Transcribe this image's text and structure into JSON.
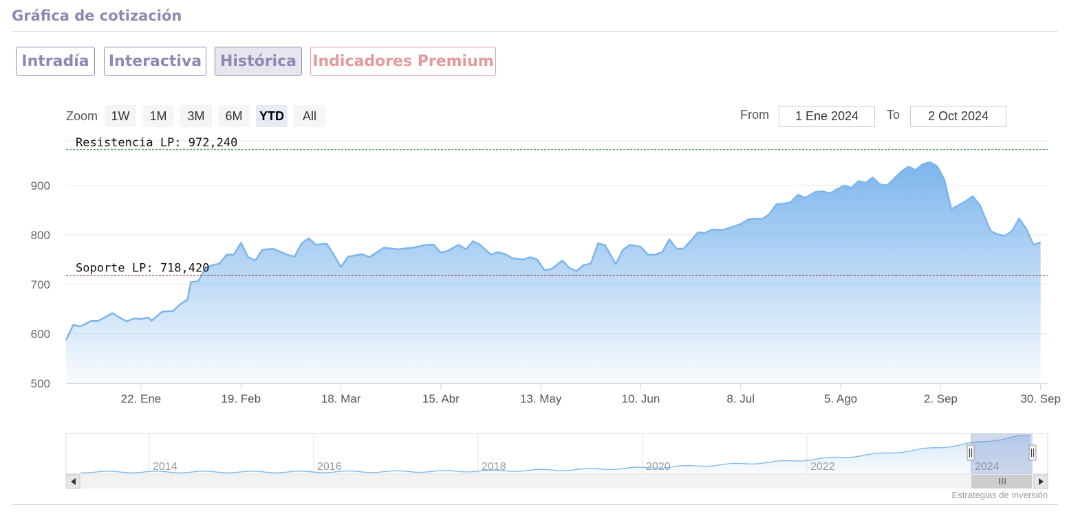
{
  "header": {
    "title": "Gráfica de cotización"
  },
  "tabs": [
    {
      "label": "Intradía"
    },
    {
      "label": "Interactiva"
    },
    {
      "label": "Histórica",
      "active": true
    },
    {
      "label": "Indicadores Premium"
    }
  ],
  "toolbar": {
    "zoom_label": "Zoom",
    "zoom_buttons": [
      "1W",
      "1M",
      "3M",
      "6M",
      "YTD",
      "All"
    ],
    "zoom_selected": "YTD",
    "from_label": "From",
    "from_value": "1 Ene 2024",
    "to_label": "To",
    "to_value": "2 Oct 2024"
  },
  "colors": {
    "accent": "#8d88b7",
    "premium": "#e49a9c",
    "series": "#7cb5ec",
    "resistance": "#1a7f2b",
    "support": "#8b1a2b"
  },
  "chart_data": {
    "type": "area",
    "x_start": "2024-01-01",
    "x_end": "2024-10-02",
    "ylim": [
      500,
      990
    ],
    "yticks": [
      "500",
      "600",
      "700",
      "800",
      "900"
    ],
    "xticks": [
      {
        "date": "2024-01-22",
        "label": "22. Ene"
      },
      {
        "date": "2024-02-19",
        "label": "19. Feb"
      },
      {
        "date": "2024-03-18",
        "label": "18. Mar"
      },
      {
        "date": "2024-04-15",
        "label": "15. Abr"
      },
      {
        "date": "2024-05-13",
        "label": "13. May"
      },
      {
        "date": "2024-06-10",
        "label": "10. Jun"
      },
      {
        "date": "2024-07-08",
        "label": "8. Jul"
      },
      {
        "date": "2024-08-05",
        "label": "5. Ago"
      },
      {
        "date": "2024-09-02",
        "label": "2. Sep"
      },
      {
        "date": "2024-09-30",
        "label": "30. Sep"
      }
    ],
    "plot_lines": [
      {
        "label": "Resistencia LP: 972,240",
        "value": 972.24,
        "color": "#1a7f2b"
      },
      {
        "label": "Soporte LP: 718,420",
        "value": 718.42,
        "color": "#8b1a2b"
      }
    ],
    "series": [
      {
        "points": [
          [
            "2024-01-01",
            587
          ],
          [
            "2024-01-03",
            618
          ],
          [
            "2024-01-05",
            615
          ],
          [
            "2024-01-08",
            626
          ],
          [
            "2024-01-10",
            626
          ],
          [
            "2024-01-12",
            634
          ],
          [
            "2024-01-14",
            642
          ],
          [
            "2024-01-16",
            633
          ],
          [
            "2024-01-18",
            625
          ],
          [
            "2024-01-20",
            631
          ],
          [
            "2024-01-22",
            630
          ],
          [
            "2024-01-24",
            633
          ],
          [
            "2024-01-25",
            627
          ],
          [
            "2024-01-27",
            639
          ],
          [
            "2024-01-28",
            645
          ],
          [
            "2024-01-31",
            646
          ],
          [
            "2024-02-02",
            660
          ],
          [
            "2024-02-04",
            669
          ],
          [
            "2024-02-05",
            705
          ],
          [
            "2024-02-07",
            706
          ],
          [
            "2024-02-09",
            732
          ],
          [
            "2024-02-11",
            739
          ],
          [
            "2024-02-13",
            742
          ],
          [
            "2024-02-15",
            760
          ],
          [
            "2024-02-17",
            760
          ],
          [
            "2024-02-19",
            784
          ],
          [
            "2024-02-21",
            755
          ],
          [
            "2024-02-23",
            748
          ],
          [
            "2024-02-25",
            770
          ],
          [
            "2024-02-28",
            772
          ],
          [
            "2024-03-03",
            760
          ],
          [
            "2024-03-05",
            756
          ],
          [
            "2024-03-07",
            783
          ],
          [
            "2024-03-09",
            793
          ],
          [
            "2024-03-11",
            780
          ],
          [
            "2024-03-14",
            782
          ],
          [
            "2024-03-16",
            760
          ],
          [
            "2024-03-18",
            735
          ],
          [
            "2024-03-20",
            756
          ],
          [
            "2024-03-24",
            761
          ],
          [
            "2024-03-26",
            755
          ],
          [
            "2024-03-30",
            774
          ],
          [
            "2024-04-03",
            771
          ],
          [
            "2024-04-07",
            774
          ],
          [
            "2024-04-11",
            780
          ],
          [
            "2024-04-13",
            780
          ],
          [
            "2024-04-15",
            764
          ],
          [
            "2024-04-17",
            768
          ],
          [
            "2024-04-20",
            780
          ],
          [
            "2024-04-22",
            771
          ],
          [
            "2024-04-24",
            787
          ],
          [
            "2024-04-26",
            780
          ],
          [
            "2024-04-29",
            760
          ],
          [
            "2024-05-01",
            765
          ],
          [
            "2024-05-03",
            761
          ],
          [
            "2024-05-05",
            753
          ],
          [
            "2024-05-08",
            750
          ],
          [
            "2024-05-10",
            755
          ],
          [
            "2024-05-12",
            750
          ],
          [
            "2024-05-14",
            729
          ],
          [
            "2024-05-16",
            731
          ],
          [
            "2024-05-19",
            748
          ],
          [
            "2024-05-21",
            733
          ],
          [
            "2024-05-23",
            727
          ],
          [
            "2024-05-25",
            739
          ],
          [
            "2024-05-27",
            742
          ],
          [
            "2024-05-29",
            783
          ],
          [
            "2024-05-31",
            779
          ],
          [
            "2024-06-03",
            741
          ],
          [
            "2024-06-05",
            770
          ],
          [
            "2024-06-07",
            780
          ],
          [
            "2024-06-10",
            776
          ],
          [
            "2024-06-12",
            760
          ],
          [
            "2024-06-14",
            760
          ],
          [
            "2024-06-16",
            765
          ],
          [
            "2024-06-18",
            791
          ],
          [
            "2024-06-20",
            772
          ],
          [
            "2024-06-22",
            772
          ],
          [
            "2024-06-24",
            788
          ],
          [
            "2024-06-26",
            805
          ],
          [
            "2024-06-28",
            804
          ],
          [
            "2024-06-30",
            811
          ],
          [
            "2024-07-03",
            810
          ],
          [
            "2024-07-06",
            817
          ],
          [
            "2024-07-08",
            822
          ],
          [
            "2024-07-10",
            831
          ],
          [
            "2024-07-12",
            833
          ],
          [
            "2024-07-14",
            832
          ],
          [
            "2024-07-16",
            842
          ],
          [
            "2024-07-18",
            862
          ],
          [
            "2024-07-20",
            863
          ],
          [
            "2024-07-22",
            866
          ],
          [
            "2024-07-24",
            881
          ],
          [
            "2024-07-26",
            875
          ],
          [
            "2024-07-29",
            887
          ],
          [
            "2024-07-31",
            888
          ],
          [
            "2024-08-02",
            884
          ],
          [
            "2024-08-04",
            892
          ],
          [
            "2024-08-06",
            900
          ],
          [
            "2024-08-08",
            895
          ],
          [
            "2024-08-10",
            909
          ],
          [
            "2024-08-12",
            905
          ],
          [
            "2024-08-14",
            916
          ],
          [
            "2024-08-16",
            902
          ],
          [
            "2024-08-18",
            900
          ],
          [
            "2024-08-20",
            914
          ],
          [
            "2024-08-22",
            928
          ],
          [
            "2024-08-24",
            938
          ],
          [
            "2024-08-26",
            931
          ],
          [
            "2024-08-28",
            943
          ],
          [
            "2024-08-30",
            947
          ],
          [
            "2024-09-01",
            939
          ],
          [
            "2024-09-03",
            913
          ],
          [
            "2024-09-05",
            852
          ],
          [
            "2024-09-07",
            860
          ],
          [
            "2024-09-09",
            868
          ],
          [
            "2024-09-11",
            878
          ],
          [
            "2024-09-13",
            860
          ],
          [
            "2024-09-15",
            825
          ],
          [
            "2024-09-16",
            808
          ],
          [
            "2024-09-18",
            801
          ],
          [
            "2024-09-20",
            798
          ],
          [
            "2024-09-22",
            808
          ],
          [
            "2024-09-24",
            833
          ],
          [
            "2024-09-26",
            812
          ],
          [
            "2024-09-28",
            780
          ],
          [
            "2024-09-30",
            785
          ]
        ]
      }
    ],
    "navigator": {
      "labels": [
        "2014",
        "2016",
        "2018",
        "2020",
        "2022",
        "2024"
      ]
    }
  },
  "footer": {
    "credit": "Estrategias de Inversión"
  }
}
